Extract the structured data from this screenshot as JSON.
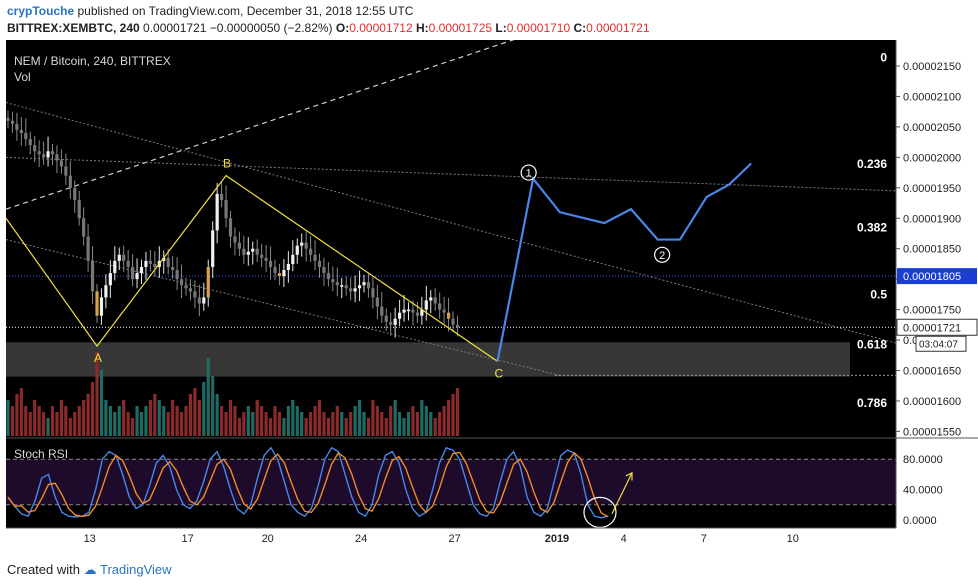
{
  "header": {
    "user": "crypTouche",
    "published": "published on TradingView.com, December 31, 2018 12:55 UTC",
    "symbol": "BITTREX:XEMBTC, 240",
    "last": "0.00001721",
    "change": "−0.00000050 (−2.82%)",
    "o_label": "O:",
    "o_value": "0.00001712",
    "h_label": "H:",
    "h_value": "0.00001725",
    "l_label": "L:",
    "l_value": "0.00001710",
    "c_label": "C:",
    "c_value": "0.00001721"
  },
  "legend": {
    "title": "NEM / Bitcoin, 240, BITTREX",
    "vol": "Vol"
  },
  "colors": {
    "up": "#26a69a",
    "down": "#ef5350",
    "fib_line": "#ffffff",
    "wave": "#f0e040",
    "projection": "#4a86e8",
    "rsi_k": "#4a86e8",
    "rsi_d": "#f08a2c",
    "rsi_bg": "#1e0a2a",
    "price_tag": "#1a3fd0"
  },
  "chart_data": {
    "type": "candlestick",
    "price_axis": {
      "ticks": [
        "0.00002150",
        "0.00002100",
        "0.00002050",
        "0.00002000",
        "0.00001950",
        "0.00001900",
        "0.00001850",
        "0.00001800",
        "0.00001750",
        "0.00001700",
        "0.00001650",
        "0.00001600",
        "0.00001550"
      ],
      "tick_values": [
        21.5,
        21.0,
        20.5,
        20.0,
        19.5,
        19.0,
        18.5,
        18.0,
        17.5,
        17.0,
        16.5,
        16.0,
        15.5
      ],
      "range": [
        15.45,
        22.0
      ],
      "unit_note": "values ×1e-6 BTC",
      "last_price_tag": "0.00001721",
      "countdown": "03:04:07",
      "blue_tag": "0.00001805"
    },
    "time_axis": {
      "labels": [
        "13",
        "17",
        "20",
        "24",
        "27",
        "2019",
        "4",
        "7",
        "10"
      ],
      "label_index": [
        6,
        28,
        46,
        67,
        88,
        111,
        126,
        144,
        164
      ]
    },
    "fib_levels": [
      {
        "label": "0",
        "price": 21.64
      },
      {
        "label": "0.236",
        "price": 19.89
      },
      {
        "label": "0.382",
        "price": 18.85
      },
      {
        "label": "0.5",
        "price": 17.75
      },
      {
        "label": "0.618",
        "price": 16.93
      },
      {
        "label": "0.786",
        "price": 15.97
      }
    ],
    "wave_points": [
      {
        "label": "A",
        "i": 20,
        "price": 16.9
      },
      {
        "label": "B",
        "i": 49,
        "price": 19.7
      },
      {
        "label": "C",
        "i": 110,
        "price": 16.65
      }
    ],
    "projection": [
      {
        "i": 110,
        "price": 16.65
      },
      {
        "i": 118,
        "price": 19.65
      },
      {
        "i": 124,
        "price": 19.1
      },
      {
        "i": 134,
        "price": 18.92
      },
      {
        "i": 140,
        "price": 19.15
      },
      {
        "i": 146,
        "price": 18.65
      },
      {
        "i": 151,
        "price": 18.65
      },
      {
        "i": 157,
        "price": 19.35
      },
      {
        "i": 162,
        "price": 19.55
      },
      {
        "i": 167,
        "price": 19.9
      }
    ],
    "circle_labels": [
      {
        "label": "1",
        "i": 117,
        "price": 19.75
      },
      {
        "label": "2",
        "i": 147,
        "price": 18.4
      }
    ],
    "candles_close": [
      20.6,
      20.55,
      20.45,
      20.4,
      20.3,
      20.2,
      20.1,
      20.05,
      20.0,
      20.1,
      20.05,
      19.95,
      19.85,
      19.7,
      19.5,
      19.3,
      19.0,
      18.7,
      18.3,
      17.8,
      17.4,
      17.7,
      17.9,
      18.1,
      18.3,
      18.4,
      18.3,
      18.2,
      18.0,
      18.1,
      18.2,
      18.3,
      18.25,
      18.2,
      18.3,
      18.35,
      18.2,
      18.15,
      18.0,
      17.9,
      17.85,
      17.8,
      17.7,
      17.6,
      17.7,
      18.2,
      18.8,
      19.4,
      19.3,
      19.0,
      18.7,
      18.6,
      18.5,
      18.4,
      18.45,
      18.5,
      18.4,
      18.35,
      18.3,
      18.2,
      18.1,
      18.05,
      18.15,
      18.25,
      18.4,
      18.55,
      18.6,
      18.5,
      18.4,
      18.3,
      18.2,
      18.1,
      18.0,
      17.95,
      17.9,
      17.9,
      17.85,
      17.8,
      17.85,
      17.9,
      17.95,
      17.85,
      17.7,
      17.55,
      17.4,
      17.3,
      17.25,
      17.35,
      17.45,
      17.5,
      17.5,
      17.45,
      17.4,
      17.5,
      17.65,
      17.7,
      17.6,
      17.5,
      17.45,
      17.35,
      17.25,
      17.21
    ],
    "stoch_rsi": {
      "label": "Stoch RSI",
      "ticks": [
        "80.0000",
        "40.0000",
        "0.0000"
      ],
      "tick_values": [
        80,
        40,
        0
      ],
      "band": [
        20,
        80
      ]
    }
  }
}
